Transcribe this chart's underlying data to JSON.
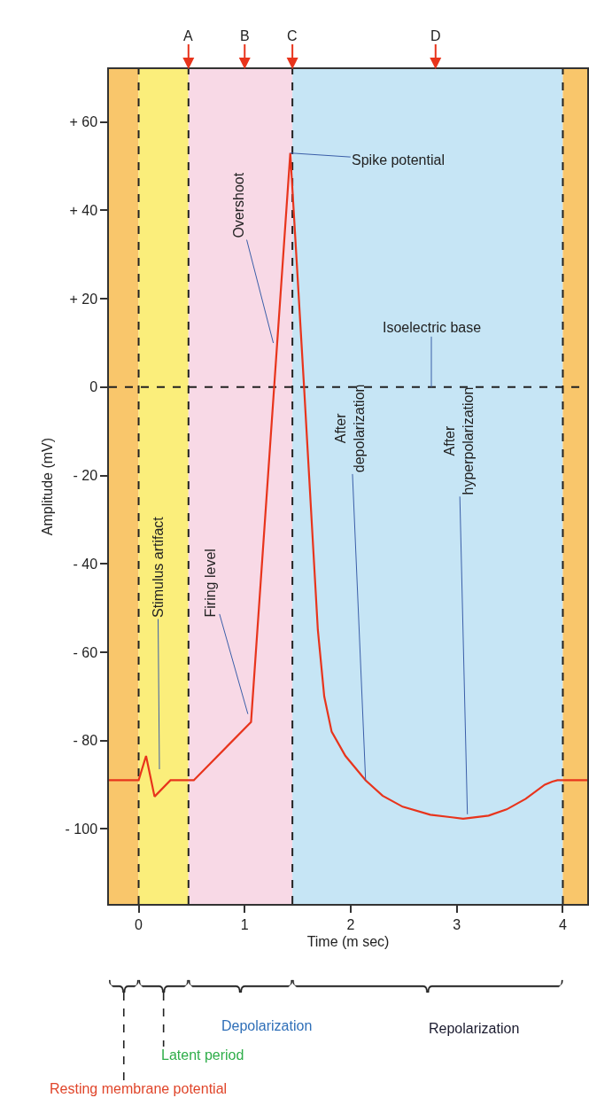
{
  "chart_data": {
    "type": "line",
    "xlabel": "Time (m sec)",
    "ylabel": "Amplitude (mV)",
    "xlim": [
      -0.28,
      4.23
    ],
    "ylim": [
      -117,
      72
    ],
    "xticks": [
      0,
      1,
      2,
      3,
      4
    ],
    "yticks": [
      {
        "value": 60,
        "label": "+ 60"
      },
      {
        "value": 40,
        "label": "+ 40"
      },
      {
        "value": 20,
        "label": "+ 20"
      },
      0,
      {
        "value": -20,
        "label": "- 20"
      },
      {
        "value": -40,
        "label": "- 40"
      },
      {
        "value": -60,
        "label": "- 60"
      },
      {
        "value": -80,
        "label": "- 80"
      },
      {
        "value": -100,
        "label": "- 100"
      }
    ],
    "grid": false,
    "marker": "none",
    "series": [
      {
        "color": "#e8341c",
        "x": [
          -0.28,
          0,
          0.07,
          0.15,
          0.3,
          0.52,
          1.06,
          1.43,
          1.56,
          1.69,
          1.75,
          1.82,
          1.95,
          2.14,
          2.3,
          2.49,
          2.75,
          3.06,
          3.3,
          3.47,
          3.65,
          3.83,
          3.9,
          3.95,
          4.23
        ],
        "values": [
          -89,
          -89,
          -83.5,
          -92.7,
          -89,
          -89,
          -75.8,
          53,
          0,
          -55,
          -70,
          -78,
          -83.5,
          -89,
          -92.5,
          -95,
          -96.8,
          -97.7,
          -97,
          -95.6,
          -93.2,
          -90,
          -89.3,
          -89,
          -89
        ]
      }
    ],
    "bands": [
      {
        "axis": "x",
        "from": -0.28,
        "to": 0,
        "color": "#f9c66b"
      },
      {
        "axis": "x",
        "from": 0,
        "to": 0.47,
        "color": "#fbee7b"
      },
      {
        "axis": "x",
        "from": 0.47,
        "to": 1.45,
        "color": "#f8d9e6"
      },
      {
        "axis": "x",
        "from": 1.45,
        "to": 4.0,
        "color": "#c6e5f5"
      },
      {
        "axis": "x",
        "from": 4.0,
        "to": 4.23,
        "color": "#f9c66b"
      }
    ],
    "ref_lines": [
      {
        "axis": "x",
        "value": 0,
        "line_style": "dashed"
      },
      {
        "axis": "x",
        "value": 0.47,
        "line_style": "dashed"
      },
      {
        "axis": "x",
        "value": 1.45,
        "line_style": "dashed"
      },
      {
        "axis": "x",
        "value": 4.0,
        "line_style": "dashed"
      },
      {
        "axis": "y",
        "value": 0,
        "line_style": "dashed",
        "label": "Isoelectric base"
      }
    ],
    "annotations": [
      {
        "text": "A",
        "x": 0.47,
        "y": 72
      },
      {
        "text": "B",
        "x": 1.0,
        "y": 72
      },
      {
        "text": "C",
        "x": 1.45,
        "y": 72
      },
      {
        "text": "D",
        "x": 2.8,
        "y": 72
      },
      {
        "text": "Spike potential",
        "x": 1.43,
        "y": 53
      },
      {
        "text": "Overshoot",
        "x": 1.27,
        "y": 10
      },
      "Stimulus artifact",
      {
        "text": "Firing level",
        "x": 1.03,
        "y": -74
      },
      {
        "text": "After\ndepolarization",
        "x": 2.14,
        "y": -89
      },
      {
        "text": "After\nhyperpolarization",
        "x": 3.1,
        "y": -96.7
      },
      "Resting membrane potential",
      "Latent period",
      "Depolarization",
      "Repolarization"
    ]
  }
}
